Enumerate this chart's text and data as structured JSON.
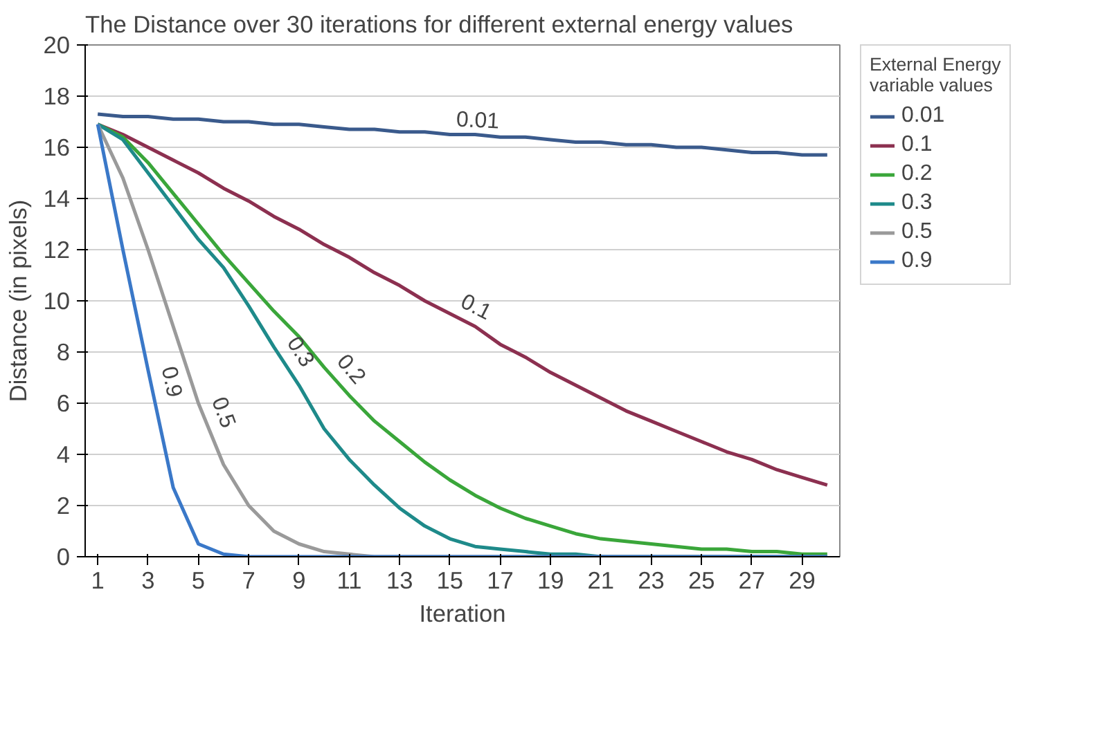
{
  "chart_data": {
    "type": "line",
    "title": "The Distance over 30 iterations for different external energy values",
    "xlabel": "Iteration",
    "ylabel": "Distance (in pixels)",
    "legend_title": "External Energy\nvariable values",
    "legend": "right",
    "grid": "y",
    "marker": "none",
    "line_style": "solid",
    "x": [
      1,
      2,
      3,
      4,
      5,
      6,
      7,
      8,
      9,
      10,
      11,
      12,
      13,
      14,
      15,
      16,
      17,
      18,
      19,
      20,
      21,
      22,
      23,
      24,
      25,
      26,
      27,
      28,
      29,
      30
    ],
    "xlim": [
      0.5,
      30.5
    ],
    "xticks": [
      1,
      3,
      5,
      7,
      9,
      11,
      13,
      15,
      17,
      19,
      21,
      23,
      25,
      27,
      29
    ],
    "ylim": [
      0,
      20
    ],
    "yticks": [
      0,
      2,
      4,
      6,
      8,
      10,
      12,
      14,
      16,
      18,
      20
    ],
    "series": [
      {
        "name": "0.01",
        "color": "#3a5a8c",
        "values": [
          17.3,
          17.2,
          17.2,
          17.1,
          17.1,
          17.0,
          17.0,
          16.9,
          16.9,
          16.8,
          16.7,
          16.7,
          16.6,
          16.6,
          16.5,
          16.5,
          16.4,
          16.4,
          16.3,
          16.2,
          16.2,
          16.1,
          16.1,
          16.0,
          16.0,
          15.9,
          15.8,
          15.8,
          15.7,
          15.7
        ]
      },
      {
        "name": "0.1",
        "color": "#8c3050",
        "values": [
          16.9,
          16.5,
          16.0,
          15.5,
          15.0,
          14.4,
          13.9,
          13.3,
          12.8,
          12.2,
          11.7,
          11.1,
          10.6,
          10.0,
          9.5,
          9.0,
          8.3,
          7.8,
          7.2,
          6.7,
          6.2,
          5.7,
          5.3,
          4.9,
          4.5,
          4.1,
          3.8,
          3.4,
          3.1,
          2.8
        ]
      },
      {
        "name": "0.2",
        "color": "#3aa63a",
        "values": [
          16.9,
          16.4,
          15.4,
          14.2,
          13.0,
          11.8,
          10.7,
          9.6,
          8.6,
          7.4,
          6.3,
          5.3,
          4.5,
          3.7,
          3.0,
          2.4,
          1.9,
          1.5,
          1.2,
          0.9,
          0.7,
          0.6,
          0.5,
          0.4,
          0.3,
          0.3,
          0.2,
          0.2,
          0.1,
          0.1
        ]
      },
      {
        "name": "0.3",
        "color": "#1e8a8a",
        "values": [
          16.9,
          16.3,
          15.0,
          13.7,
          12.4,
          11.3,
          9.8,
          8.2,
          6.7,
          5.0,
          3.8,
          2.8,
          1.9,
          1.2,
          0.7,
          0.4,
          0.3,
          0.2,
          0.1,
          0.1,
          0.0,
          0.0,
          0.0,
          0.0,
          0.0,
          0.0,
          0.0,
          0.0,
          0.0,
          0.0
        ]
      },
      {
        "name": "0.5",
        "color": "#9a9a9a",
        "values": [
          16.9,
          14.8,
          12.0,
          9.0,
          6.0,
          3.6,
          2.0,
          1.0,
          0.5,
          0.2,
          0.1,
          0.0,
          0.0,
          0.0,
          0.0,
          0.0,
          0.0,
          0.0,
          0.0,
          0.0,
          0.0,
          0.0,
          0.0,
          0.0,
          0.0,
          0.0,
          0.0,
          0.0,
          0.0,
          0.0
        ]
      },
      {
        "name": "0.9",
        "color": "#3a78c8",
        "values": [
          16.9,
          12.0,
          7.3,
          2.7,
          0.5,
          0.1,
          0.0,
          0.0,
          0.0,
          0.0,
          0.0,
          0.0,
          0.0,
          0.0,
          0.0,
          0.0,
          0.0,
          0.0,
          0.0,
          0.0,
          0.0,
          0.0,
          0.0,
          0.0,
          0.0,
          0.0,
          0.0,
          0.0,
          0.0,
          0.0
        ]
      }
    ]
  }
}
